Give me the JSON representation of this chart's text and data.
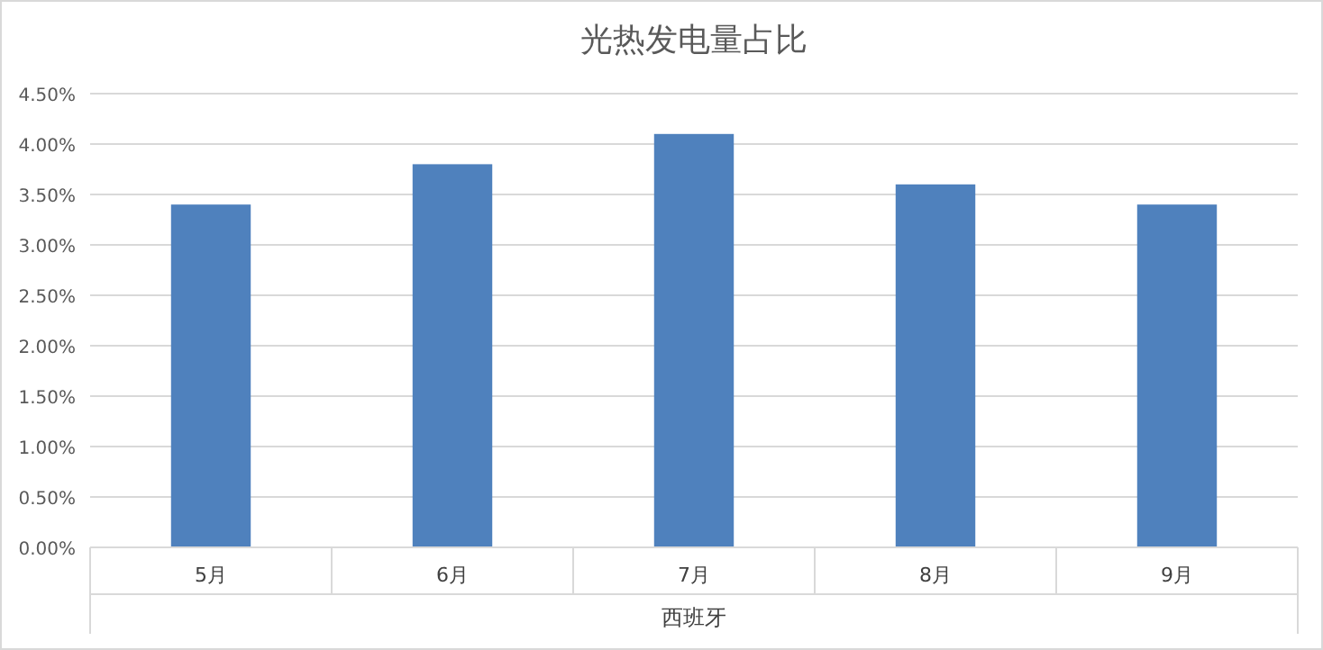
{
  "chart_data": {
    "type": "bar",
    "title": "光热发电量占比",
    "xlabel": "西班牙",
    "categories": [
      "5月",
      "6月",
      "7月",
      "8月",
      "9月"
    ],
    "values": [
      3.4,
      3.8,
      4.1,
      3.6,
      3.4
    ],
    "color": "#4f81bd",
    "ylim": [
      0,
      4.5
    ],
    "yticks": [
      {
        "value": 0,
        "label": "0.00%"
      },
      {
        "value": 0.5,
        "label": "0.50%"
      },
      {
        "value": 1,
        "label": "1.00%"
      },
      {
        "value": 1.5,
        "label": "1.50%"
      },
      {
        "value": 2,
        "label": "2.00%"
      },
      {
        "value": 2.5,
        "label": "2.50%"
      },
      {
        "value": 3,
        "label": "3.00%"
      },
      {
        "value": 3.5,
        "label": "3.50%"
      },
      {
        "value": 4,
        "label": "4.00%"
      },
      {
        "value": 4.5,
        "label": "4.50%"
      }
    ],
    "grid": "y"
  }
}
